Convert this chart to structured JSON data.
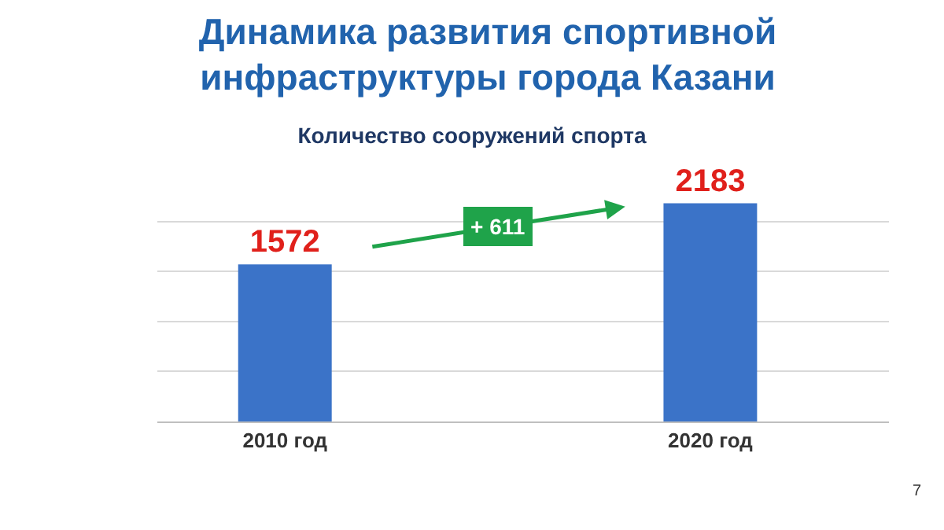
{
  "chart_data": {
    "type": "bar",
    "title": "Динамика развития спортивной инфраструктуры города Казани",
    "subtitle": "Количество сооружений спорта",
    "categories": [
      "2010 год",
      "2020 год"
    ],
    "values": [
      1572,
      2183
    ],
    "color": "#3b73c8",
    "data_labels": true,
    "grid": "y",
    "tick_labels": "x",
    "legend": false,
    "annotations": [
      "+ 611",
      "7"
    ]
  }
}
